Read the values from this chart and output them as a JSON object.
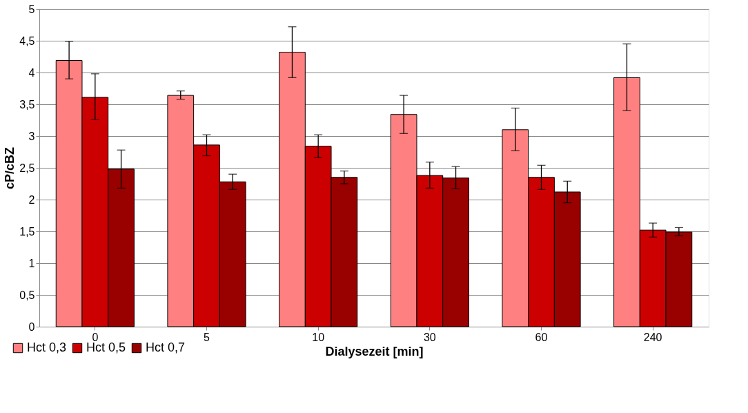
{
  "chart_data": {
    "type": "bar",
    "xlabel": "Dialysezeit [min]",
    "ylabel": "cP/cBZ",
    "categories": [
      "0",
      "5",
      "10",
      "30",
      "60",
      "240"
    ],
    "series": [
      {
        "name": "Hct 0,3",
        "color": "#ff8080",
        "values": [
          4.19,
          3.64,
          4.32,
          3.34,
          3.1,
          3.92
        ],
        "errors": [
          [
            3.9,
            4.49
          ],
          [
            3.58,
            3.71
          ],
          [
            3.92,
            4.72
          ],
          [
            3.04,
            3.64
          ],
          [
            2.77,
            3.44
          ],
          [
            3.4,
            4.45
          ]
        ]
      },
      {
        "name": "Hct 0,5",
        "color": "#cc0000",
        "values": [
          3.61,
          2.86,
          2.84,
          2.38,
          2.35,
          1.52
        ],
        "errors": [
          [
            3.26,
            3.98
          ],
          [
            2.69,
            3.02
          ],
          [
            2.66,
            3.02
          ],
          [
            2.18,
            2.59
          ],
          [
            2.16,
            2.54
          ],
          [
            1.41,
            1.63
          ]
        ]
      },
      {
        "name": "Hct 0,7",
        "color": "#990000",
        "values": [
          2.48,
          2.28,
          2.35,
          2.34,
          2.12,
          1.49
        ],
        "errors": [
          [
            2.18,
            2.78
          ],
          [
            2.16,
            2.4
          ],
          [
            2.25,
            2.45
          ],
          [
            2.17,
            2.52
          ],
          [
            1.95,
            2.29
          ],
          [
            1.43,
            1.56
          ]
        ]
      }
    ],
    "ylim": [
      0,
      5
    ],
    "yticks": [
      0,
      {
        "value": 0.5,
        "label": "0,5"
      },
      1,
      {
        "value": 1.5,
        "label": "1,5"
      },
      2,
      {
        "value": 2.5,
        "label": "2,5"
      },
      3,
      {
        "value": 3.5,
        "label": "3,5"
      },
      4,
      {
        "value": 4.5,
        "label": "4,5"
      },
      5
    ],
    "grid": "y",
    "legend": "bottom left"
  }
}
